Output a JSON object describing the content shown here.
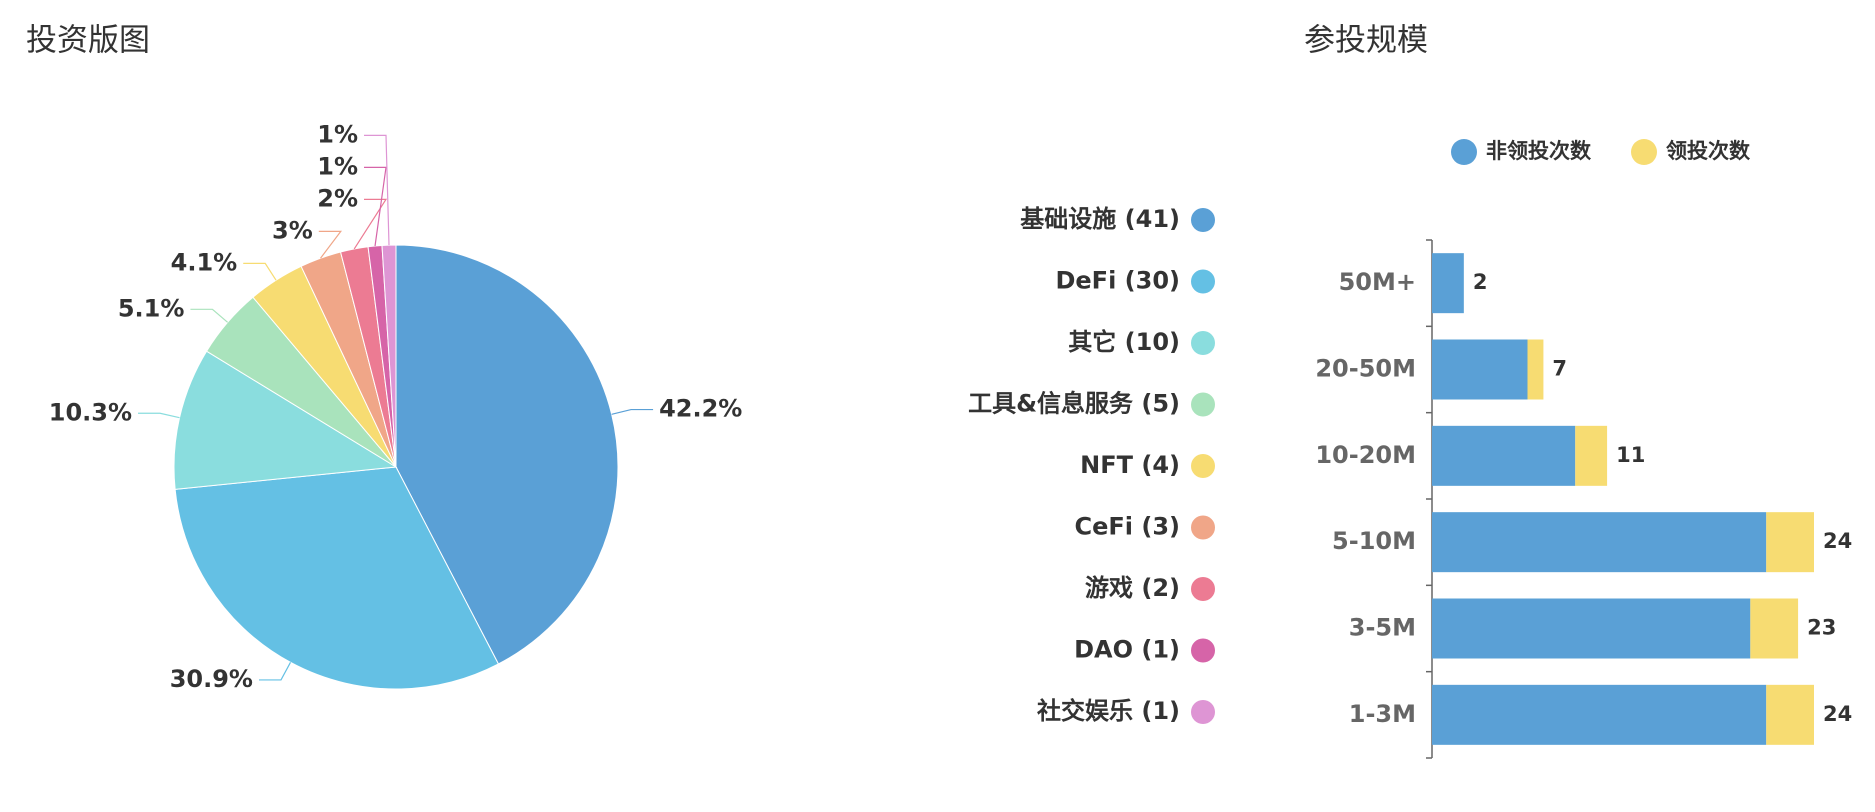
{
  "chart_data": [
    {
      "type": "pie",
      "title": "投资版图",
      "categories": [
        "基础设施 (41)",
        "DeFi (30)",
        "其它 (10)",
        "工具&信息服务 (5)",
        "NFT (4)",
        "CeFi (3)",
        "游戏 (2)",
        "DAO (1)",
        "社交娱乐 (1)"
      ],
      "values": [
        42.2,
        30.9,
        10.3,
        5.1,
        4.1,
        3,
        2,
        1,
        1
      ],
      "value_labels": [
        "42.2%",
        "30.9%",
        "10.3%",
        "5.1%",
        "4.1%",
        "3%",
        "2%",
        "1%",
        "1%"
      ],
      "colors": [
        "#5aa0d6",
        "#64c0e4",
        "#8addde",
        "#a9e3bc",
        "#f7dc72",
        "#f0a688",
        "#ec7b93",
        "#d664a8",
        "#de95d4"
      ],
      "legend": "right"
    },
    {
      "type": "bar",
      "title": "参投规模",
      "orientation": "horizontal",
      "stacked": true,
      "categories": [
        "50M+",
        "20-50M",
        "10-20M",
        "5-10M",
        "3-5M",
        "1-3M"
      ],
      "series": [
        {
          "name": "非领投次数",
          "color": "#5aa0d6",
          "values": [
            2,
            6,
            9,
            21,
            20,
            21
          ]
        },
        {
          "name": "领投次数",
          "color": "#f7dc72",
          "values": [
            0,
            1,
            2,
            3,
            3,
            3
          ]
        }
      ],
      "totals": [
        2,
        7,
        11,
        24,
        23,
        24
      ],
      "xlim": [
        0,
        24
      ],
      "legend": "top"
    }
  ]
}
